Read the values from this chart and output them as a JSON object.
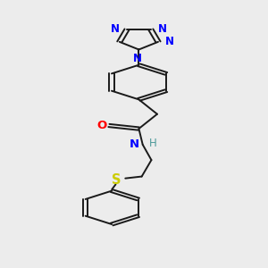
{
  "bg_color": "#ececec",
  "bond_color": "#1a1a1a",
  "N_color": "#0000ff",
  "O_color": "#ff0000",
  "S_color": "#cccc00",
  "H_color": "#4d9999",
  "font_size": 8.5,
  "lw": 1.4,
  "figsize": [
    3.0,
    3.0
  ],
  "dpi": 100,
  "xlim": [
    2.5,
    8.0
  ],
  "ylim": [
    0.5,
    10.5
  ]
}
